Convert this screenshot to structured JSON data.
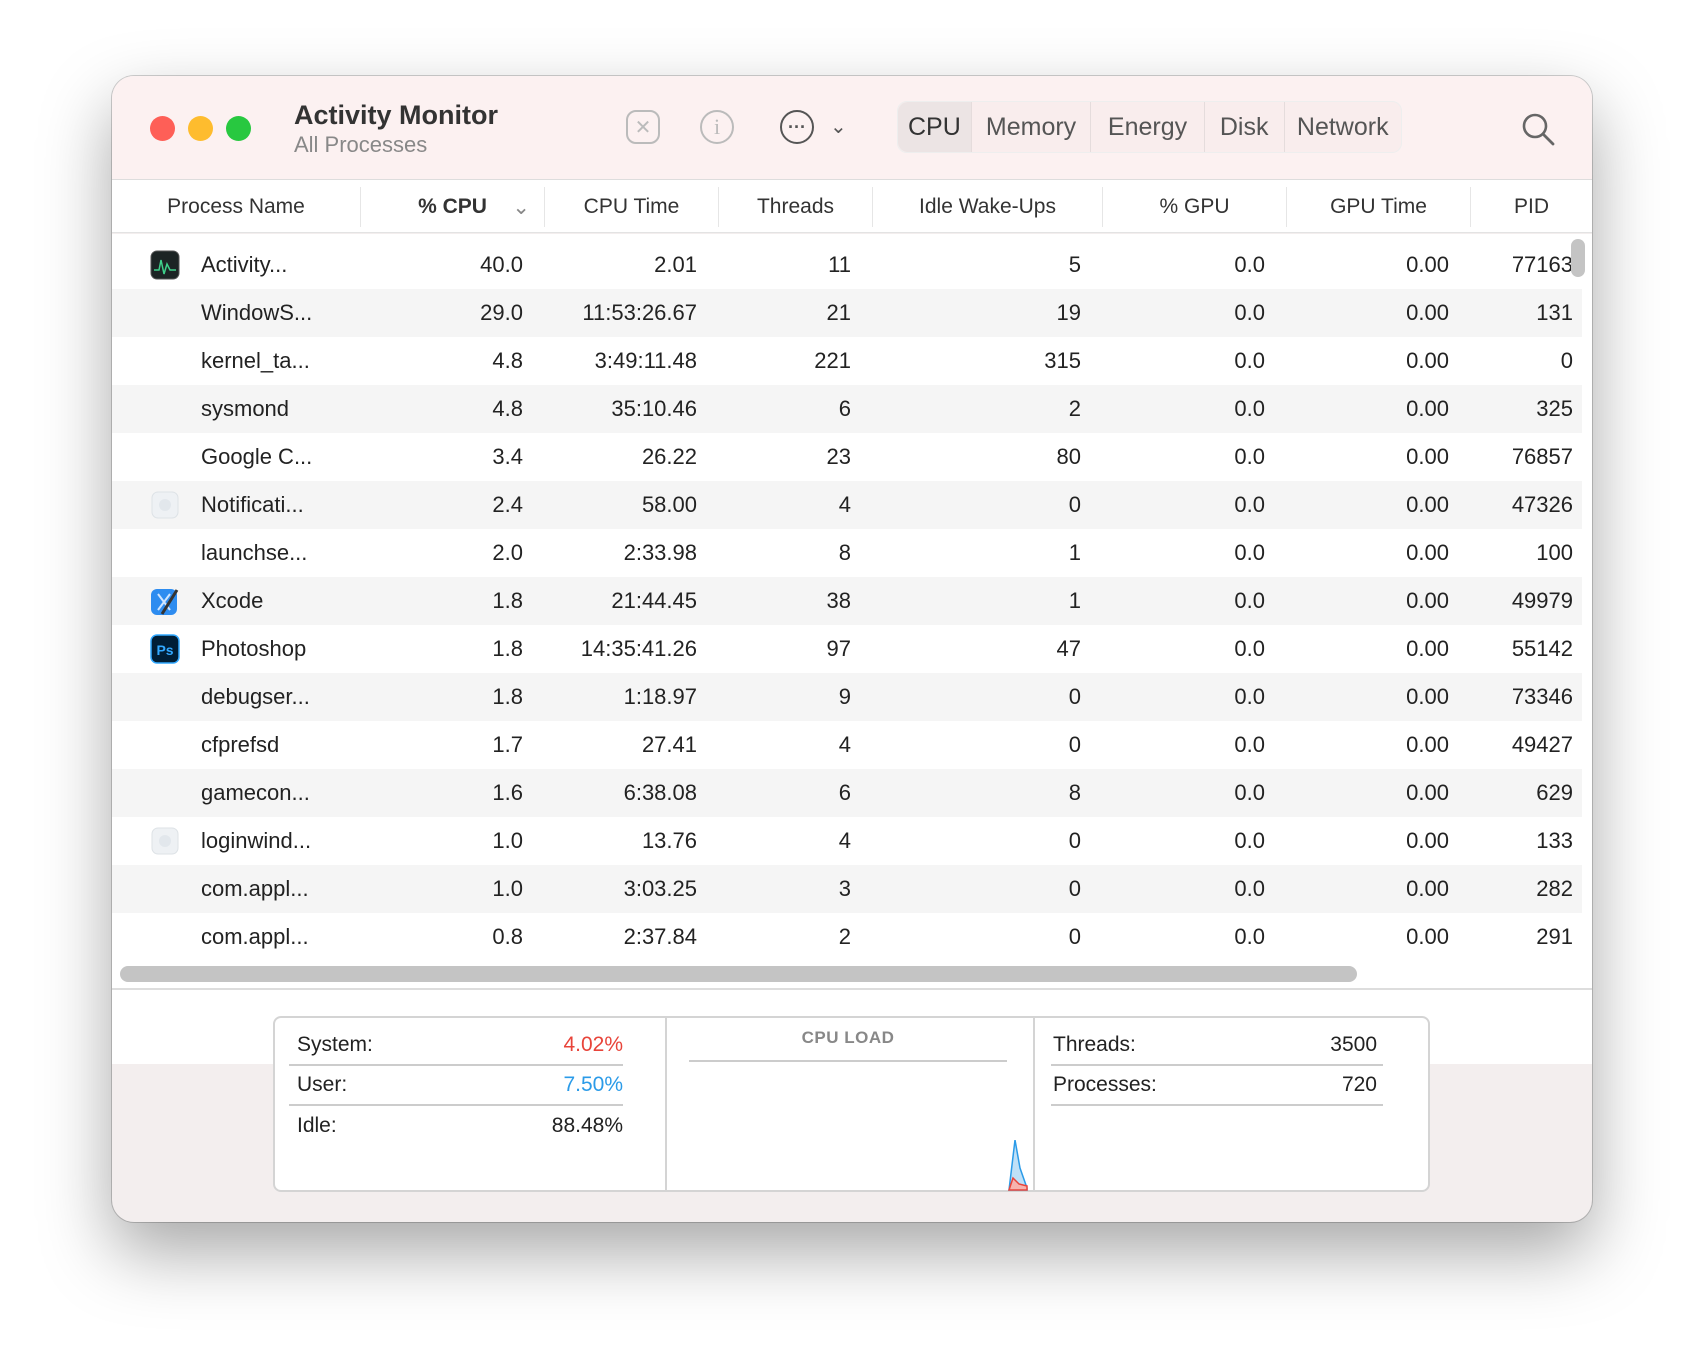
{
  "window": {
    "title": "Activity Monitor",
    "subtitle": "All Processes"
  },
  "toolbar": {
    "stop_icon": "x-octagon-icon",
    "info_icon": "info-circle-icon",
    "more_icon": "ellipsis-circle-icon",
    "search_icon": "magnifier-icon"
  },
  "tabs": [
    {
      "label": "CPU",
      "selected": true
    },
    {
      "label": "Memory"
    },
    {
      "label": "Energy"
    },
    {
      "label": "Disk"
    },
    {
      "label": "Network"
    }
  ],
  "columns": [
    "Process Name",
    "% CPU",
    "CPU Time",
    "Threads",
    "Idle Wake-Ups",
    "% GPU",
    "GPU Time",
    "PID"
  ],
  "sort": {
    "column": "% CPU",
    "direction": "descending"
  },
  "rows": [
    {
      "icon": "activity-monitor",
      "name": "Activity...",
      "cpu": "40.0",
      "time": "2.01",
      "threads": "11",
      "idle": "5",
      "gpu": "0.0",
      "gputime": "0.00",
      "pid": "77163"
    },
    {
      "icon": "",
      "name": "WindowS...",
      "cpu": "29.0",
      "time": "11:53:26.67",
      "threads": "21",
      "idle": "19",
      "gpu": "0.0",
      "gputime": "0.00",
      "pid": "131"
    },
    {
      "icon": "",
      "name": "kernel_ta...",
      "cpu": "4.8",
      "time": "3:49:11.48",
      "threads": "221",
      "idle": "315",
      "gpu": "0.0",
      "gputime": "0.00",
      "pid": "0"
    },
    {
      "icon": "",
      "name": "sysmond",
      "cpu": "4.8",
      "time": "35:10.46",
      "threads": "6",
      "idle": "2",
      "gpu": "0.0",
      "gputime": "0.00",
      "pid": "325"
    },
    {
      "icon": "",
      "name": "Google C...",
      "cpu": "3.4",
      "time": "26.22",
      "threads": "23",
      "idle": "80",
      "gpu": "0.0",
      "gputime": "0.00",
      "pid": "76857"
    },
    {
      "icon": "generic",
      "name": "Notificati...",
      "cpu": "2.4",
      "time": "58.00",
      "threads": "4",
      "idle": "0",
      "gpu": "0.0",
      "gputime": "0.00",
      "pid": "47326"
    },
    {
      "icon": "",
      "name": "launchse...",
      "cpu": "2.0",
      "time": "2:33.98",
      "threads": "8",
      "idle": "1",
      "gpu": "0.0",
      "gputime": "0.00",
      "pid": "100"
    },
    {
      "icon": "xcode",
      "name": "Xcode",
      "cpu": "1.8",
      "time": "21:44.45",
      "threads": "38",
      "idle": "1",
      "gpu": "0.0",
      "gputime": "0.00",
      "pid": "49979"
    },
    {
      "icon": "photoshop",
      "name": "Photoshop",
      "cpu": "1.8",
      "time": "14:35:41.26",
      "threads": "97",
      "idle": "47",
      "gpu": "0.0",
      "gputime": "0.00",
      "pid": "55142"
    },
    {
      "icon": "",
      "name": "debugser...",
      "cpu": "1.8",
      "time": "1:18.97",
      "threads": "9",
      "idle": "0",
      "gpu": "0.0",
      "gputime": "0.00",
      "pid": "73346"
    },
    {
      "icon": "",
      "name": "cfprefsd",
      "cpu": "1.7",
      "time": "27.41",
      "threads": "4",
      "idle": "0",
      "gpu": "0.0",
      "gputime": "0.00",
      "pid": "49427"
    },
    {
      "icon": "",
      "name": "gamecon...",
      "cpu": "1.6",
      "time": "6:38.08",
      "threads": "6",
      "idle": "8",
      "gpu": "0.0",
      "gputime": "0.00",
      "pid": "629"
    },
    {
      "icon": "generic",
      "name": "loginwind...",
      "cpu": "1.0",
      "time": "13.76",
      "threads": "4",
      "idle": "0",
      "gpu": "0.0",
      "gputime": "0.00",
      "pid": "133"
    },
    {
      "icon": "",
      "name": "com.appl...",
      "cpu": "1.0",
      "time": "3:03.25",
      "threads": "3",
      "idle": "0",
      "gpu": "0.0",
      "gputime": "0.00",
      "pid": "282"
    },
    {
      "icon": "",
      "name": "com.appl...",
      "cpu": "0.8",
      "time": "2:37.84",
      "threads": "2",
      "idle": "0",
      "gpu": "0.0",
      "gputime": "0.00",
      "pid": "291"
    }
  ],
  "stats": {
    "system_label": "System:",
    "system": "4.02%",
    "system_color": "#e8443a",
    "user_label": "User:",
    "user": "7.50%",
    "user_color": "#2b9be8",
    "idle_label": "Idle:",
    "idle": "88.48%",
    "cpu_load_label": "CPU LOAD",
    "threads_label": "Threads:",
    "threads": "3500",
    "processes_label": "Processes:",
    "processes": "720"
  }
}
